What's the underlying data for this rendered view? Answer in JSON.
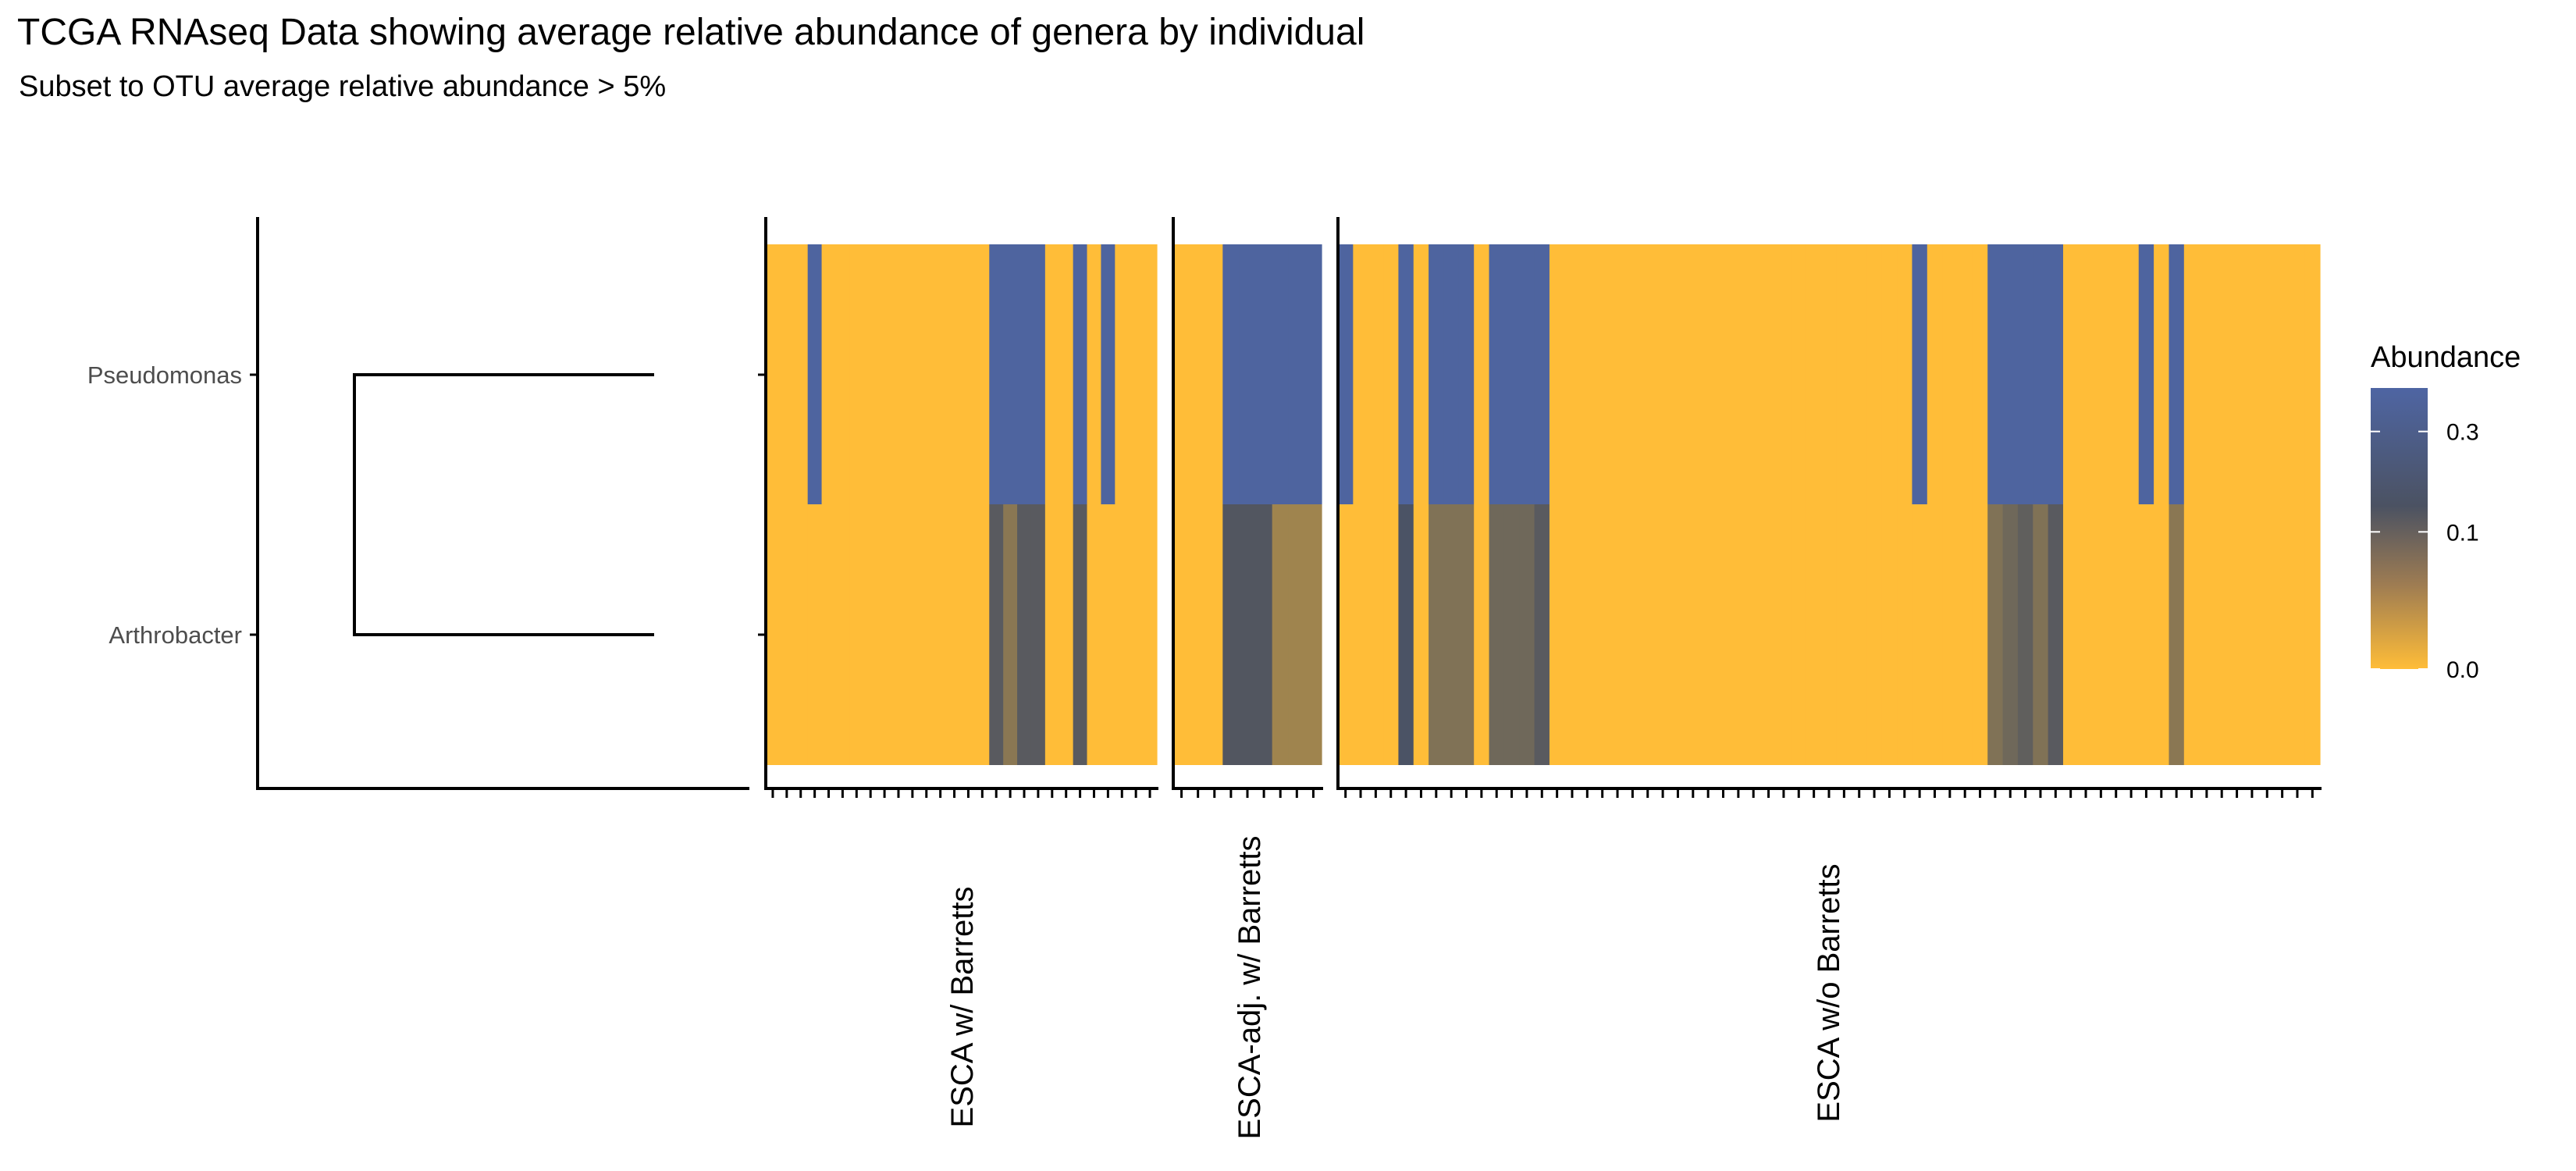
{
  "chart_data": {
    "type": "heatmap",
    "title": "TCGA RNAseq Data showing average relative abundance of genera by individual",
    "subtitle": "Subset to OTU average relative abundance > 5%",
    "rows": [
      "Pseudomonas",
      "Arthrobacter"
    ],
    "legend": {
      "title": "Abundance",
      "scale": "sqrt",
      "breaks": [
        0.3,
        0.1,
        0.0
      ],
      "break_labels": [
        "0.3",
        "0.1",
        "0.0"
      ],
      "max": 0.42,
      "colors": {
        "low": "#FFBD38",
        "mid": "#4B5262",
        "high": "#4E65A3"
      },
      "placement": "right"
    },
    "panels": [
      {
        "label": "ESCA w/ Barretts",
        "pseudomonas": [
          0,
          0,
          0,
          0.4,
          0,
          0,
          0,
          0,
          0,
          0,
          0,
          0,
          0,
          0,
          0,
          0,
          0.4,
          0.4,
          0.4,
          0.4,
          0,
          0,
          0.4,
          0,
          0.4,
          0,
          0,
          0
        ],
        "arthrobacter": [
          0,
          0,
          0,
          0,
          0,
          0,
          0,
          0,
          0,
          0,
          0,
          0,
          0,
          0,
          0,
          0,
          0.12,
          0.06,
          0.12,
          0.12,
          0,
          0,
          0.12,
          0,
          0,
          0,
          0,
          0
        ]
      },
      {
        "label": "ESCA-adj. w/ Barretts",
        "pseudomonas": [
          0,
          0,
          0,
          0.4,
          0.4,
          0.4,
          0.4,
          0.4,
          0.4
        ],
        "arthrobacter": [
          0,
          0,
          0,
          0.13,
          0.13,
          0.13,
          0.04,
          0.04,
          0.04
        ]
      },
      {
        "label": "ESCA w/o Barretts",
        "pseudomonas": [
          0.4,
          0,
          0,
          0,
          0.4,
          0,
          0.4,
          0.4,
          0.4,
          0,
          0.4,
          0.4,
          0.4,
          0.4,
          0,
          0,
          0,
          0,
          0,
          0,
          0,
          0,
          0,
          0,
          0,
          0,
          0,
          0,
          0,
          0,
          0,
          0,
          0,
          0,
          0,
          0,
          0,
          0,
          0.4,
          0,
          0,
          0,
          0,
          0.4,
          0.4,
          0.4,
          0.4,
          0.4,
          0,
          0,
          0,
          0,
          0,
          0.4,
          0,
          0.4,
          0,
          0,
          0,
          0,
          0,
          0,
          0,
          0,
          0
        ],
        "arthrobacter": [
          0,
          0,
          0,
          0,
          0.15,
          0,
          0.07,
          0.07,
          0.07,
          0,
          0.09,
          0.09,
          0.09,
          0.12,
          0,
          0,
          0,
          0,
          0,
          0,
          0,
          0,
          0,
          0,
          0,
          0,
          0,
          0,
          0,
          0,
          0,
          0,
          0,
          0,
          0,
          0,
          0,
          0,
          0,
          0,
          0,
          0,
          0,
          0.07,
          0.09,
          0.11,
          0.07,
          0.12,
          0,
          0,
          0,
          0,
          0,
          0,
          0,
          0.06,
          0,
          0,
          0,
          0,
          0,
          0,
          0,
          0,
          0
        ]
      }
    ],
    "dendrogram": "Pseudomonas and Arthrobacter joined in a single cluster"
  }
}
